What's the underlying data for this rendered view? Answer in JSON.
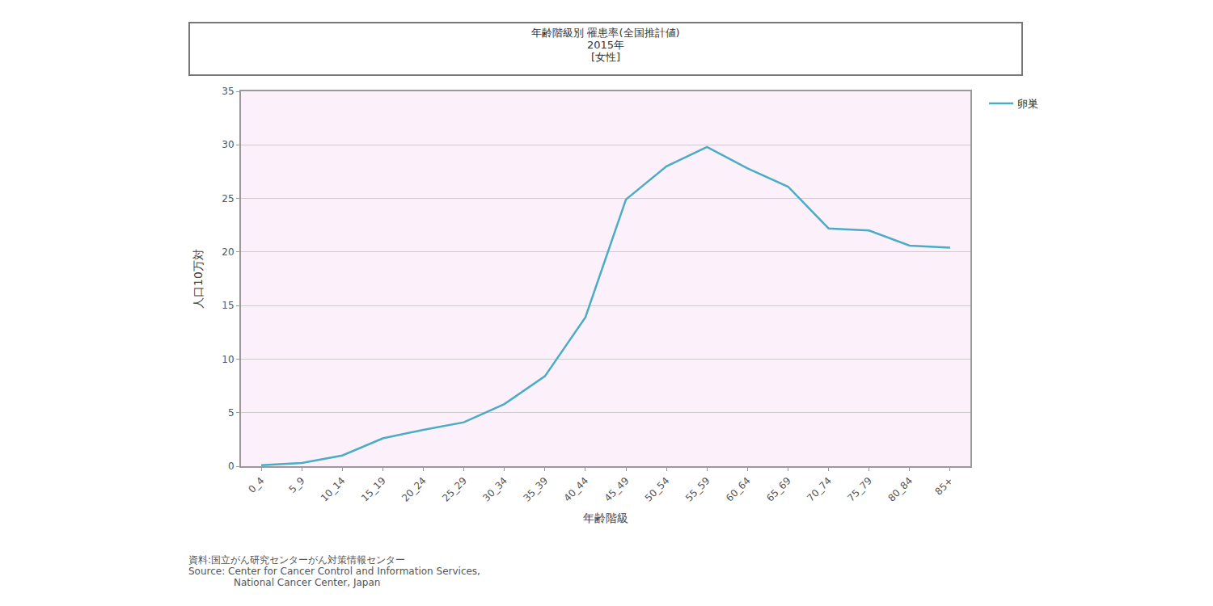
{
  "chart_data": {
    "type": "line",
    "title": "年齢階級別 罹患率(全国推計値)",
    "subtitle": [
      "2015年",
      "[女性]"
    ],
    "x_label": "年齢階級",
    "y_label": "人口10万対",
    "source": [
      "資料:国立がん研究センターがん対策情報センター",
      "Source: Center for Cancer Control and Information Services,",
      "National Cancer Center, Japan"
    ],
    "categories": [
      "0_4",
      "5_9",
      "10_14",
      "15_19",
      "20_24",
      "25_29",
      "30_34",
      "35_39",
      "40_44",
      "45_49",
      "50_54",
      "55_59",
      "60_64",
      "65_69",
      "70_74",
      "75_79",
      "80_84",
      "85+"
    ],
    "series": [
      {
        "name": "卵巣",
        "color": "#4bacc6",
        "values": [
          0.1,
          0.3,
          1.0,
          2.6,
          3.4,
          4.1,
          5.8,
          8.4,
          13.9,
          24.9,
          28.0,
          29.8,
          27.8,
          26.1,
          22.2,
          22.0,
          20.6,
          20.4
        ]
      }
    ],
    "ylim": [
      0,
      35
    ],
    "yticks": [
      0,
      5,
      10,
      15,
      20,
      25,
      30,
      35
    ],
    "grid": true,
    "legend": "top right"
  }
}
